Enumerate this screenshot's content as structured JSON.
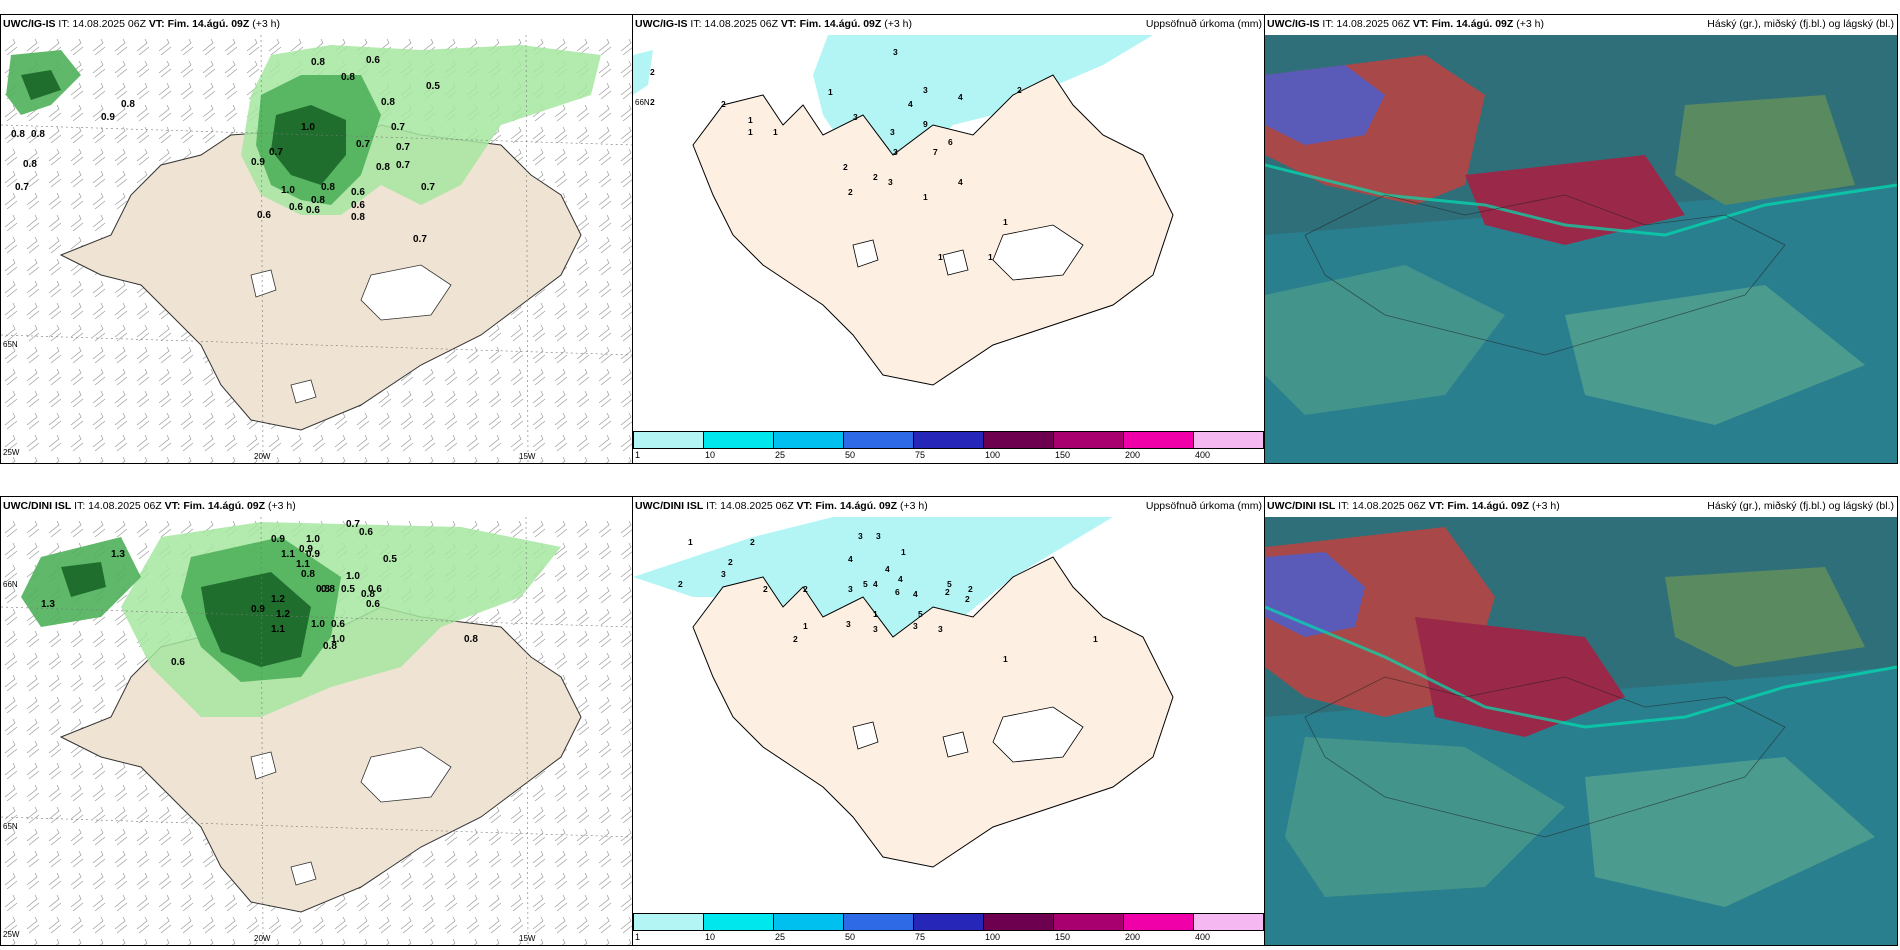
{
  "panels": [
    {
      "model": "UWC/IG-IS",
      "it": "IT: 14.08.2025 06Z",
      "vt_label": "VT:",
      "vt": "Fim. 14.ágú. 09Z",
      "lead": "(+3 h)",
      "right": ""
    },
    {
      "model": "UWC/IG-IS",
      "it": "IT: 14.08.2025 06Z",
      "vt_label": "VT:",
      "vt": "Fim. 14.ágú. 09Z",
      "lead": "(+3 h)",
      "right": "Uppsöfnuð úrkoma (mm)"
    },
    {
      "model": "UWC/IG-IS",
      "it": "IT: 14.08.2025 06Z",
      "vt_label": "VT:",
      "vt": "Fim. 14.ágú. 09Z",
      "lead": "(+3 h)",
      "right": "Háský (gr.), miðský (fj.bl.) og lágský (bl.)"
    },
    {
      "model": "UWC/DINI ISL",
      "it": "IT: 14.08.2025 06Z",
      "vt_label": "VT:",
      "vt": "Fim. 14.ágú. 09Z",
      "lead": "(+3 h)",
      "right": ""
    },
    {
      "model": "UWC/DINI ISL",
      "it": "IT: 14.08.2025 06Z",
      "vt_label": "VT:",
      "vt": "Fim. 14.ágú. 09Z",
      "lead": "(+3 h)",
      "right": "Uppsöfnuð úrkoma (mm)"
    },
    {
      "model": "UWC/DINI ISL",
      "it": "IT: 14.08.2025 06Z",
      "vt_label": "VT:",
      "vt": "Fim. 14.ágú. 09Z",
      "lead": "(+3 h)",
      "right": "Háský (gr.), miðský (fj.bl.) og lágský (bl.)"
    }
  ],
  "axis_labels": {
    "w20": "20W",
    "w15": "15W",
    "w25": "25W",
    "n65": "65N",
    "n66": "66N"
  },
  "colorbar": {
    "ticks": [
      "1",
      "10",
      "25",
      "50",
      "75",
      "100",
      "150",
      "200",
      "400"
    ],
    "colors": [
      "#b3f5f5",
      "#00e8ee",
      "#00c0f0",
      "#2e6ae6",
      "#2626b8",
      "#6e0050",
      "#a8006e",
      "#f000a8",
      "#f6b8f0"
    ]
  },
  "cloud_values_ig": [
    "0.8",
    "0.6",
    "0.5",
    "0.8",
    "0.9",
    "0.8",
    "1.0",
    "0.7",
    "0.8",
    "0.8",
    "0.7",
    "0.9",
    "0.7",
    "1.0",
    "0.6",
    "0.8",
    "0.6",
    "0.8",
    "0.7",
    "0.6",
    "0.6",
    "0.7",
    "0.8",
    "0.7",
    "0.7",
    "0.8",
    "0.8",
    "0.6",
    "0.8",
    "0.7"
  ],
  "cloud_values_dini": [
    "0.7",
    "0.6",
    "0.9",
    "1.0",
    "0.5",
    "0.8",
    "0.6",
    "0.6",
    "1.1",
    "1.0",
    "0.8",
    "0.5",
    "0.8",
    "0.9",
    "1.0",
    "0.9",
    "0.8",
    "1.2",
    "1.3",
    "0.6",
    "0.9",
    "1.0",
    "1.1",
    "1.2",
    "0.6",
    "0.8",
    "1.1",
    "1.3",
    "0.8"
  ],
  "precip_values_ig": [
    "3",
    "2",
    "2",
    "2",
    "3",
    "1",
    "3",
    "4",
    "9",
    "1",
    "1",
    "1",
    "3",
    "2",
    "3",
    "7",
    "6",
    "4",
    "4",
    "2",
    "3",
    "2",
    "1",
    "1",
    "1",
    "1",
    "2"
  ],
  "precip_values_dini": [
    "2",
    "3",
    "3",
    "1",
    "2",
    "2",
    "3",
    "4",
    "4",
    "1",
    "2",
    "3",
    "5",
    "4",
    "4",
    "6",
    "4",
    "5",
    "2",
    "2",
    "2",
    "2",
    "3",
    "1",
    "3",
    "3",
    "5",
    "3",
    "2",
    "1",
    "1",
    "1"
  ]
}
